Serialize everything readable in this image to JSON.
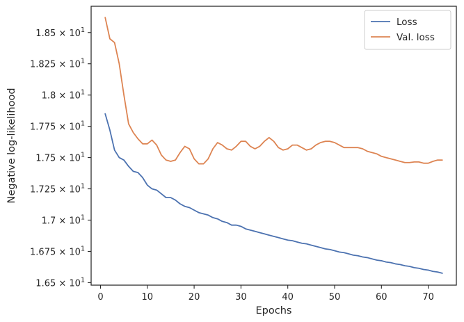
{
  "chart_data": {
    "type": "line",
    "xlabel": "Epochs",
    "ylabel": "Negative log-likelihood",
    "xlim": [
      -2,
      76
    ],
    "ylim": [
      16.48,
      18.71
    ],
    "xticks": [
      0,
      10,
      20,
      30,
      40,
      50,
      60,
      70
    ],
    "xtick_labels": [
      "0",
      "10",
      "20",
      "30",
      "40",
      "50",
      "60",
      "70"
    ],
    "yticks": [
      16.5,
      16.75,
      17.0,
      17.25,
      17.5,
      17.75,
      18.0,
      18.25,
      18.5
    ],
    "ytick_mantissas": [
      "1.65",
      "1.675",
      "1.7",
      "1.725",
      "1.75",
      "1.775",
      "1.8",
      "1.825",
      "1.85"
    ],
    "ytick_multiplier": "× 10",
    "ytick_exponent": "1",
    "grid": false,
    "legend_position": "top-right",
    "series": [
      {
        "name": "Loss",
        "color": "#4c72b0",
        "x": [
          1,
          2,
          3,
          4,
          5,
          6,
          7,
          8,
          9,
          10,
          11,
          12,
          13,
          14,
          15,
          16,
          17,
          18,
          19,
          20,
          21,
          22,
          23,
          24,
          25,
          26,
          27,
          28,
          29,
          30,
          31,
          32,
          33,
          34,
          35,
          36,
          37,
          38,
          39,
          40,
          41,
          42,
          43,
          44,
          45,
          46,
          47,
          48,
          49,
          50,
          51,
          52,
          53,
          54,
          55,
          56,
          57,
          58,
          59,
          60,
          61,
          62,
          63,
          64,
          65,
          66,
          67,
          68,
          69,
          70,
          71,
          72,
          73
        ],
        "values": [
          17.85,
          17.72,
          17.56,
          17.5,
          17.48,
          17.43,
          17.39,
          17.38,
          17.34,
          17.28,
          17.25,
          17.24,
          17.21,
          17.18,
          17.18,
          17.16,
          17.13,
          17.11,
          17.1,
          17.08,
          17.06,
          17.05,
          17.04,
          17.02,
          17.01,
          16.99,
          16.98,
          16.96,
          16.96,
          16.95,
          16.93,
          16.92,
          16.91,
          16.9,
          16.89,
          16.88,
          16.87,
          16.86,
          16.85,
          16.84,
          16.835,
          16.825,
          16.815,
          16.81,
          16.8,
          16.79,
          16.78,
          16.77,
          16.765,
          16.755,
          16.745,
          16.74,
          16.73,
          16.72,
          16.715,
          16.705,
          16.7,
          16.69,
          16.68,
          16.675,
          16.665,
          16.66,
          16.65,
          16.645,
          16.635,
          16.63,
          16.62,
          16.615,
          16.605,
          16.6,
          16.59,
          16.585,
          16.575
        ]
      },
      {
        "name": "Val. loss",
        "color": "#dd8452",
        "x": [
          1,
          2,
          3,
          4,
          5,
          6,
          7,
          8,
          9,
          10,
          11,
          12,
          13,
          14,
          15,
          16,
          17,
          18,
          19,
          20,
          21,
          22,
          23,
          24,
          25,
          26,
          27,
          28,
          29,
          30,
          31,
          32,
          33,
          34,
          35,
          36,
          37,
          38,
          39,
          40,
          41,
          42,
          43,
          44,
          45,
          46,
          47,
          48,
          49,
          50,
          51,
          52,
          53,
          54,
          55,
          56,
          57,
          58,
          59,
          60,
          61,
          62,
          63,
          64,
          65,
          66,
          67,
          68,
          69,
          70,
          71,
          72,
          73
        ],
        "values": [
          18.62,
          18.45,
          18.42,
          18.25,
          18.0,
          17.77,
          17.7,
          17.65,
          17.61,
          17.61,
          17.64,
          17.6,
          17.52,
          17.48,
          17.47,
          17.48,
          17.54,
          17.59,
          17.57,
          17.49,
          17.45,
          17.45,
          17.49,
          17.57,
          17.62,
          17.6,
          17.57,
          17.56,
          17.59,
          17.63,
          17.63,
          17.59,
          17.57,
          17.59,
          17.63,
          17.66,
          17.63,
          17.58,
          17.56,
          17.57,
          17.6,
          17.6,
          17.58,
          17.56,
          17.57,
          17.6,
          17.62,
          17.63,
          17.63,
          17.62,
          17.6,
          17.58,
          17.58,
          17.58,
          17.58,
          17.57,
          17.55,
          17.54,
          17.53,
          17.51,
          17.5,
          17.49,
          17.48,
          17.47,
          17.46,
          17.46,
          17.465,
          17.465,
          17.455,
          17.455,
          17.47,
          17.48,
          17.48
        ]
      }
    ]
  }
}
